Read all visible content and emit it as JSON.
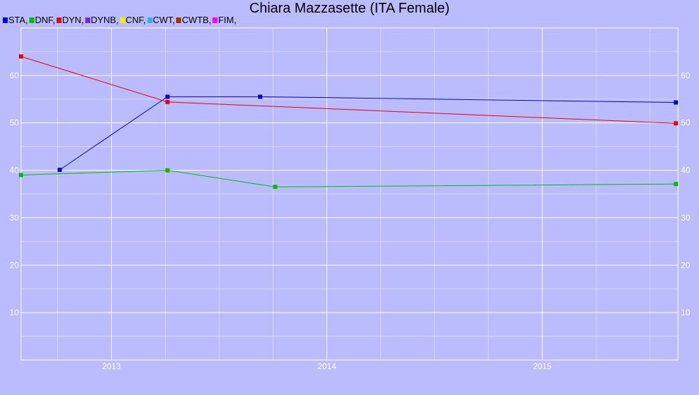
{
  "chart_data": {
    "type": "line",
    "title": "Chiara Mazzasette (ITA Female)",
    "xlabel": "",
    "ylabel": "",
    "xlim": [
      2012.58,
      2015.63
    ],
    "ylim": [
      0,
      70
    ],
    "y_ticks": [
      10,
      20,
      30,
      40,
      50,
      60
    ],
    "x_ticks": [
      {
        "value": 2013,
        "label": "2013"
      },
      {
        "value": 2014,
        "label": "2014"
      },
      {
        "value": 2015,
        "label": "2015"
      }
    ],
    "grid": true,
    "legend_position": "top-left",
    "legend": [
      {
        "label": "STA,",
        "color": "#0000dd"
      },
      {
        "label": "DNF,",
        "color": "#00bb00"
      },
      {
        "label": "DYN,",
        "color": "#ee0000"
      },
      {
        "label": "DYNB,",
        "color": "#7722ee"
      },
      {
        "label": "CNF,",
        "color": "#eeee00"
      },
      {
        "label": "CWT,",
        "color": "#22bbdd"
      },
      {
        "label": "CWTB,",
        "color": "#993300"
      },
      {
        "label": "FIM,",
        "color": "#ff00ff"
      }
    ],
    "series": [
      {
        "name": "STA",
        "color": "#0000dd",
        "points": [
          [
            2012.76,
            40.1
          ],
          [
            2013.26,
            55.5
          ],
          [
            2013.69,
            55.5
          ],
          [
            2015.62,
            54.3
          ]
        ]
      },
      {
        "name": "DNF",
        "color": "#00bb00",
        "points": [
          [
            2012.58,
            39.0
          ],
          [
            2013.26,
            40.0
          ],
          [
            2013.76,
            36.5
          ],
          [
            2015.62,
            37.1
          ]
        ]
      },
      {
        "name": "DYN",
        "color": "#ee0000",
        "points": [
          [
            2012.58,
            64.0
          ],
          [
            2013.26,
            54.4
          ],
          [
            2015.62,
            49.9
          ]
        ]
      }
    ]
  }
}
